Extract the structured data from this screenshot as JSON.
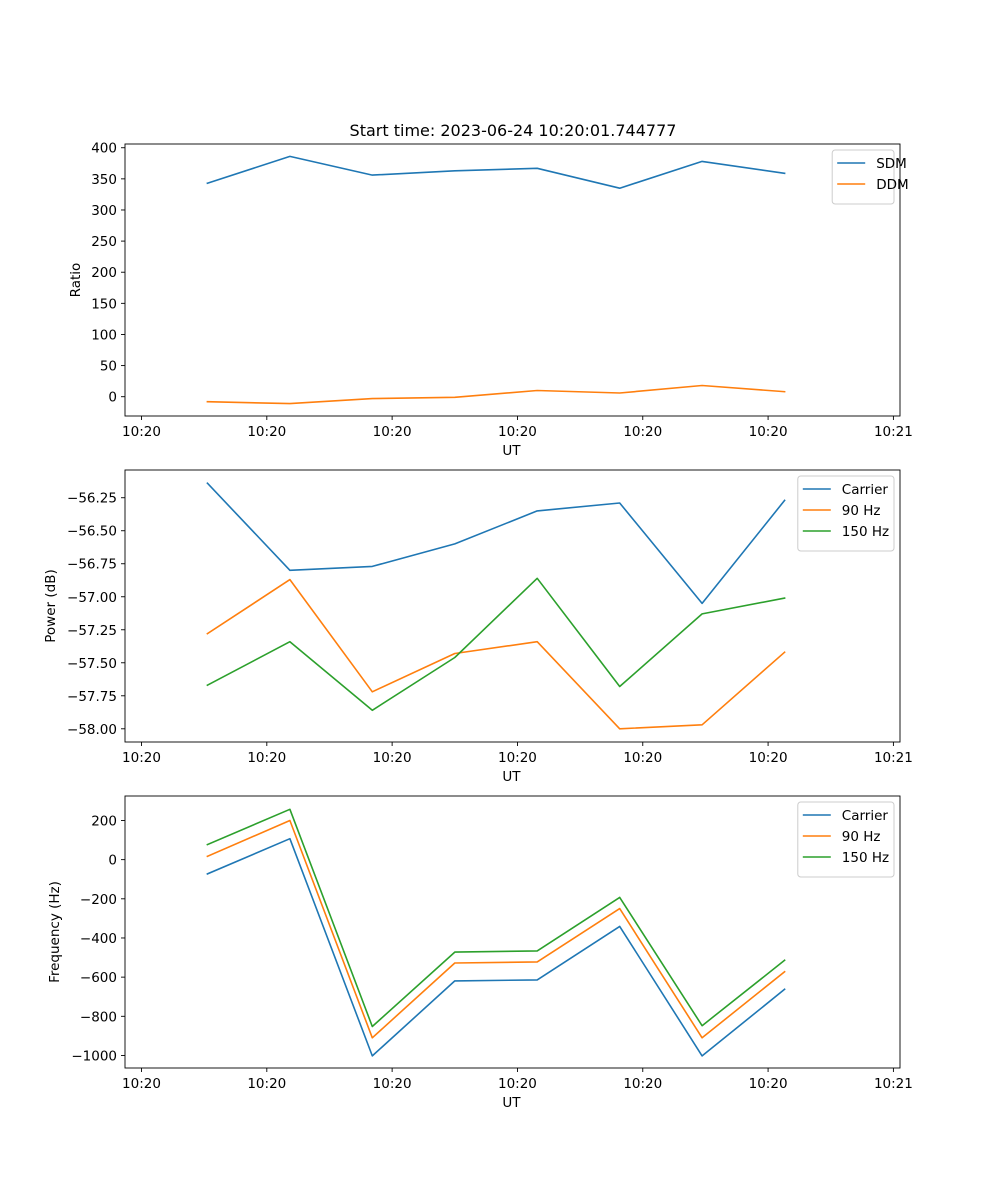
{
  "figure": {
    "title": "Start time: 2023-06-24 10:20:01.744777"
  },
  "colors": {
    "blue": "#1f77b4",
    "orange": "#ff7f0e",
    "green": "#2ca02c"
  },
  "chart_data": [
    {
      "type": "line",
      "title": "Start time: 2023-06-24 10:20:01.744777",
      "xlabel": "UT",
      "ylabel": "Ratio",
      "x": [
        1,
        2,
        3,
        4,
        5,
        6,
        7,
        8
      ],
      "xlim": [
        0,
        9.4
      ],
      "xticks": [
        0.2,
        1.72,
        3.24,
        4.76,
        6.28,
        7.8,
        9.32
      ],
      "xtick_labels": [
        "10:20",
        "10:20",
        "10:20",
        "10:20",
        "10:20",
        "10:20",
        "10:21"
      ],
      "ylim": [
        -31,
        406
      ],
      "yticks": [
        0,
        50,
        100,
        150,
        200,
        250,
        300,
        350,
        400
      ],
      "ytick_labels": [
        "0",
        "50",
        "100",
        "150",
        "200",
        "250",
        "300",
        "350",
        "400"
      ],
      "grid": false,
      "legend_position": "upper right",
      "series": [
        {
          "name": "SDM",
          "color": "#1f77b4",
          "values": [
            343,
            386,
            356,
            363,
            367,
            335,
            378,
            359
          ]
        },
        {
          "name": "DDM",
          "color": "#ff7f0e",
          "values": [
            -8,
            -11,
            -3,
            -1,
            10,
            6,
            18,
            8
          ]
        }
      ]
    },
    {
      "type": "line",
      "title": "",
      "xlabel": "UT",
      "ylabel": "Power (dB)",
      "x": [
        1,
        2,
        3,
        4,
        5,
        6,
        7,
        8
      ],
      "xlim": [
        0,
        9.4
      ],
      "xticks": [
        0.2,
        1.72,
        3.24,
        4.76,
        6.28,
        7.8,
        9.32
      ],
      "xtick_labels": [
        "10:20",
        "10:20",
        "10:20",
        "10:20",
        "10:20",
        "10:20",
        "10:21"
      ],
      "ylim": [
        -58.1,
        -56.04
      ],
      "yticks": [
        -58.0,
        -57.75,
        -57.5,
        -57.25,
        -57.0,
        -56.75,
        -56.5,
        -56.25
      ],
      "ytick_labels": [
        "−58.00",
        "−57.75",
        "−57.50",
        "−57.25",
        "−57.00",
        "−56.75",
        "−56.50",
        "−56.25"
      ],
      "grid": false,
      "legend_position": "upper right",
      "series": [
        {
          "name": "Carrier",
          "color": "#1f77b4",
          "values": [
            -56.14,
            -56.8,
            -56.77,
            -56.6,
            -56.35,
            -56.29,
            -57.05,
            -56.27
          ]
        },
        {
          "name": "90 Hz",
          "color": "#ff7f0e",
          "values": [
            -57.28,
            -56.87,
            -57.72,
            -57.43,
            -57.34,
            -58.0,
            -57.97,
            -57.42
          ]
        },
        {
          "name": "150 Hz",
          "color": "#2ca02c",
          "values": [
            -57.67,
            -57.34,
            -57.86,
            -57.46,
            -56.86,
            -57.68,
            -57.13,
            -57.01
          ]
        }
      ]
    },
    {
      "type": "line",
      "title": "",
      "xlabel": "UT",
      "ylabel": "Frequency (Hz)",
      "x": [
        1,
        2,
        3,
        4,
        5,
        6,
        7,
        8
      ],
      "xlim": [
        0,
        9.4
      ],
      "xticks": [
        0.2,
        1.72,
        3.24,
        4.76,
        6.28,
        7.8,
        9.32
      ],
      "xtick_labels": [
        "10:20",
        "10:20",
        "10:20",
        "10:20",
        "10:20",
        "10:20",
        "10:21"
      ],
      "ylim": [
        -1064,
        325
      ],
      "yticks": [
        -1000,
        -800,
        -600,
        -400,
        -200,
        0,
        200
      ],
      "ytick_labels": [
        "−1000",
        "−800",
        "−600",
        "−400",
        "−200",
        "0",
        "200"
      ],
      "grid": false,
      "legend_position": "upper right",
      "series": [
        {
          "name": "Carrier",
          "color": "#1f77b4",
          "values": [
            -73,
            107,
            -1002,
            -619,
            -614,
            -341,
            -1002,
            -662
          ]
        },
        {
          "name": "90 Hz",
          "color": "#ff7f0e",
          "values": [
            17,
            200,
            -910,
            -528,
            -522,
            -250,
            -910,
            -572
          ]
        },
        {
          "name": "150 Hz",
          "color": "#2ca02c",
          "values": [
            77,
            257,
            -852,
            -472,
            -466,
            -193,
            -848,
            -514
          ]
        }
      ]
    }
  ]
}
